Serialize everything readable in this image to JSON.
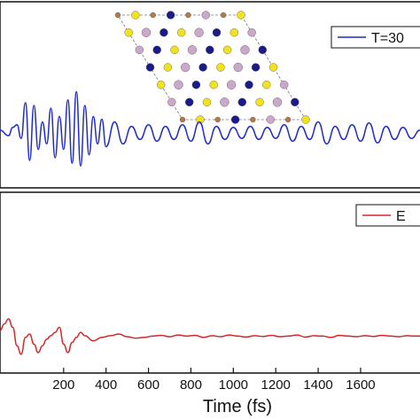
{
  "chart_data": [
    {
      "type": "line",
      "panel": "top",
      "title": "",
      "xlabel": "",
      "ylabel": "",
      "xlim": [
        -100,
        1880
      ],
      "ylim": [
        -1,
        1
      ],
      "grid": false,
      "legend_position": "top-right",
      "series": [
        {
          "name": "T=30",
          "color": "#1f2bd0",
          "x": [
            -100,
            -60,
            -40,
            -20,
            0,
            20,
            40,
            60,
            80,
            100,
            120,
            140,
            160,
            180,
            200,
            220,
            240,
            260,
            280,
            300,
            320,
            340,
            360,
            380,
            400,
            440,
            480,
            520,
            560,
            600,
            640,
            680,
            720,
            760,
            800,
            840,
            880,
            920,
            960,
            1000,
            1040,
            1080,
            1120,
            1160,
            1200,
            1240,
            1280,
            1320,
            1360,
            1400,
            1440,
            1480,
            1520,
            1560,
            1600,
            1640,
            1680,
            1720,
            1760,
            1800,
            1840,
            1880
          ],
          "y": [
            0.05,
            -0.05,
            0.1,
            0.15,
            -0.1,
            0.55,
            -0.5,
            0.5,
            -0.3,
            0.2,
            -0.2,
            0.45,
            -0.45,
            0.3,
            -0.3,
            0.6,
            -0.55,
            0.75,
            -0.6,
            0.5,
            -0.4,
            0.3,
            -0.2,
            0.25,
            -0.25,
            0.2,
            -0.2,
            0.12,
            -0.12,
            0.15,
            -0.15,
            0.12,
            -0.12,
            0.15,
            -0.15,
            0.2,
            -0.2,
            0.12,
            -0.12,
            0.1,
            -0.1,
            0.12,
            -0.12,
            0.1,
            -0.1,
            0.15,
            -0.15,
            0.12,
            -0.12,
            0.2,
            -0.2,
            0.12,
            -0.12,
            0.15,
            -0.15,
            0.18,
            -0.18,
            0.12,
            -0.12,
            0.1,
            -0.1,
            0.05
          ]
        }
      ]
    },
    {
      "type": "line",
      "panel": "bottom",
      "title": "",
      "xlabel": "Time (fs)",
      "ylabel": "",
      "xlim": [
        -100,
        1880
      ],
      "ylim": [
        -1,
        1
      ],
      "grid": false,
      "legend_position": "top-right",
      "x_ticks": [
        200,
        400,
        600,
        800,
        1000,
        1200,
        1400,
        1600
      ],
      "series": [
        {
          "name": "E",
          "color": "#d62728",
          "x": [
            -100,
            -80,
            -60,
            -40,
            -20,
            0,
            20,
            40,
            60,
            80,
            100,
            120,
            140,
            160,
            180,
            200,
            220,
            240,
            260,
            280,
            300,
            340,
            380,
            420,
            460,
            500,
            540,
            580,
            620,
            660,
            700,
            740,
            780,
            820,
            860,
            900,
            940,
            980,
            1020,
            1060,
            1100,
            1140,
            1180,
            1220,
            1260,
            1300,
            1340,
            1380,
            1420,
            1460,
            1500,
            1540,
            1580,
            1620,
            1660,
            1700,
            1740,
            1780,
            1820,
            1860,
            1880
          ],
          "y": [
            0.1,
            0.3,
            0.45,
            0.2,
            -0.35,
            -0.6,
            -0.1,
            0.0,
            -0.3,
            -0.55,
            -0.35,
            -0.15,
            -0.05,
            0.05,
            0.2,
            -0.3,
            -0.55,
            -0.25,
            -0.1,
            0.05,
            -0.05,
            -0.2,
            -0.1,
            -0.05,
            0.0,
            -0.08,
            -0.12,
            -0.1,
            -0.06,
            -0.04,
            -0.08,
            -0.03,
            -0.06,
            -0.04,
            -0.1,
            -0.05,
            -0.08,
            -0.03,
            -0.06,
            -0.09,
            -0.05,
            -0.07,
            -0.04,
            -0.08,
            -0.06,
            -0.03,
            -0.09,
            -0.05,
            -0.06,
            -0.1,
            -0.04,
            -0.06,
            -0.08,
            -0.05,
            -0.07,
            -0.04,
            -0.06,
            -0.08,
            -0.05,
            -0.06,
            -0.06
          ]
        }
      ]
    }
  ],
  "structure_inset": {
    "icon": "crystal-lattice-icon",
    "colors": {
      "navy": "#1a1a8c",
      "yellow": "#f2e21e",
      "lilac": "#c9a8c9",
      "brown": "#b07a4a"
    }
  }
}
